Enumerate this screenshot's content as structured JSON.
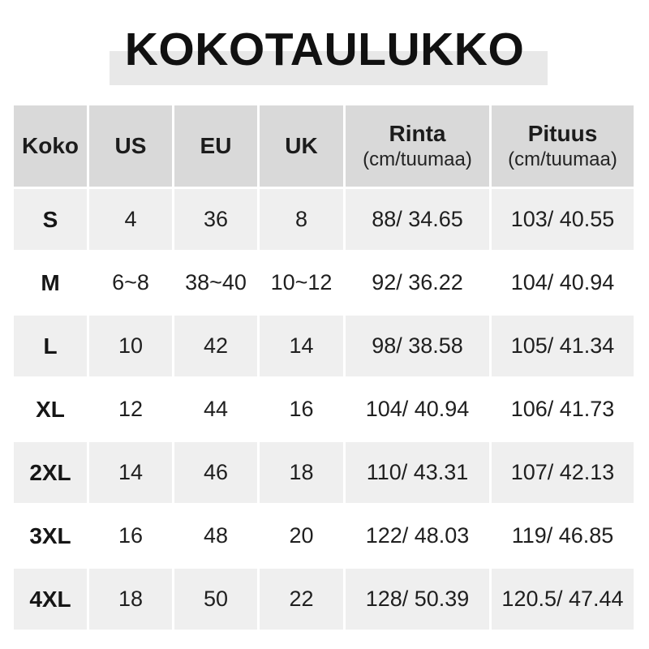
{
  "title": "KOKOTAULUKKO",
  "colors": {
    "page_bg": "#ffffff",
    "title_band_bg": "#e8e8e8",
    "header_bg": "#d9d9d9",
    "row_bg": "#ffffff",
    "row_alt_bg": "#efefef",
    "text": "#1c1c1c"
  },
  "chart_data": {
    "type": "table",
    "title": "KOKOTAULUKKO",
    "columns": [
      {
        "label": "Koko",
        "sub": ""
      },
      {
        "label": "US",
        "sub": ""
      },
      {
        "label": "EU",
        "sub": ""
      },
      {
        "label": "UK",
        "sub": ""
      },
      {
        "label": "Rinta",
        "sub": "(cm/tuumaa)"
      },
      {
        "label": "Pituus",
        "sub": "(cm/tuumaa)"
      }
    ],
    "rows": [
      [
        "S",
        "4",
        "36",
        "8",
        "88/ 34.65",
        "103/ 40.55"
      ],
      [
        "M",
        "6~8",
        "38~40",
        "10~12",
        "92/ 36.22",
        "104/ 40.94"
      ],
      [
        "L",
        "10",
        "42",
        "14",
        "98/ 38.58",
        "105/ 41.34"
      ],
      [
        "XL",
        "12",
        "44",
        "16",
        "104/ 40.94",
        "106/ 41.73"
      ],
      [
        "2XL",
        "14",
        "46",
        "18",
        "110/ 43.31",
        "107/ 42.13"
      ],
      [
        "3XL",
        "16",
        "48",
        "20",
        "122/ 48.03",
        "119/ 46.85"
      ],
      [
        "4XL",
        "18",
        "50",
        "22",
        "128/ 50.39",
        "120.5/ 47.44"
      ]
    ]
  }
}
